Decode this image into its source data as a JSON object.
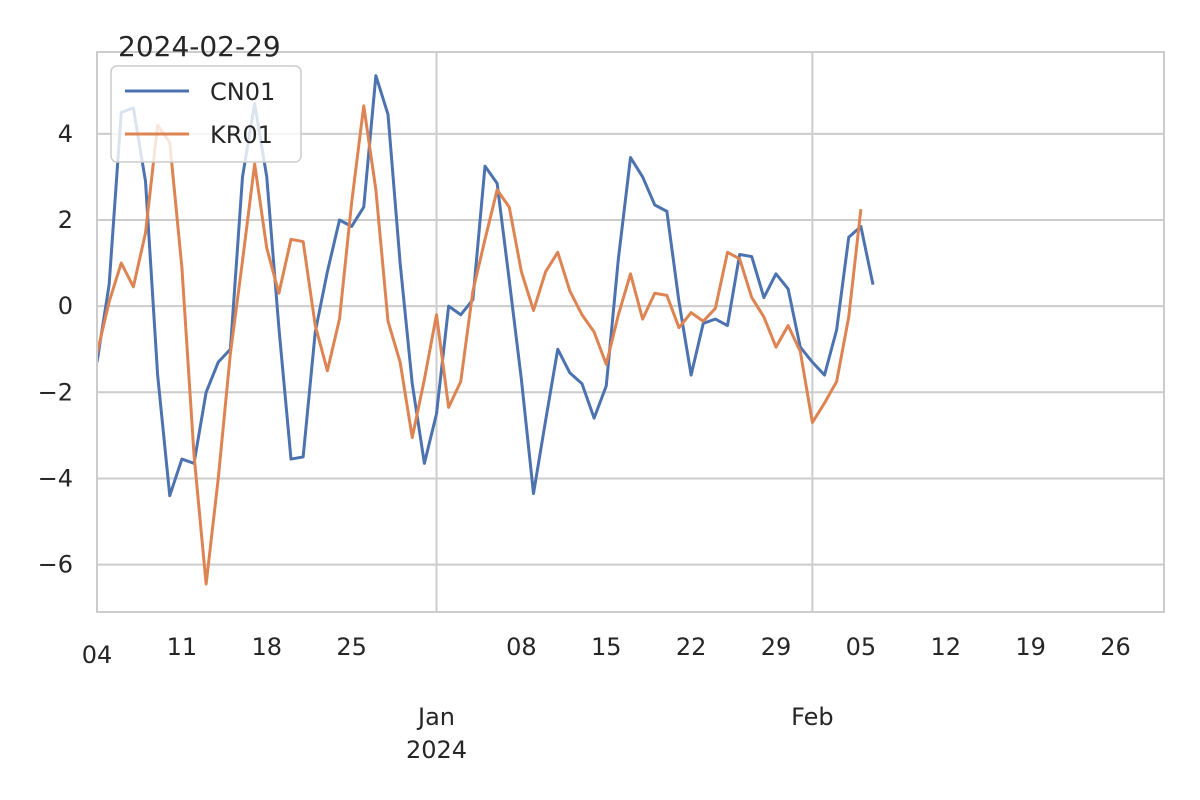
{
  "chart_data": {
    "type": "line",
    "title": "2024-02-29",
    "xlabel": "",
    "ylabel": "",
    "x_start": "2023-12-04",
    "x_end": "2024-03-01",
    "ylim": [
      -7.1,
      5.9
    ],
    "y_ticks": [
      -6,
      -4,
      -2,
      0,
      2,
      4
    ],
    "y_tick_labels": [
      "−6",
      "−4",
      "−2",
      "0",
      "2",
      "4"
    ],
    "x_minor_ticks": [
      {
        "date": "2023-12-04",
        "label": "04"
      },
      {
        "date": "2023-12-11",
        "label": "11"
      },
      {
        "date": "2023-12-18",
        "label": "18"
      },
      {
        "date": "2023-12-25",
        "label": "25"
      },
      {
        "date": "2024-01-08",
        "label": "08"
      },
      {
        "date": "2024-01-15",
        "label": "15"
      },
      {
        "date": "2024-01-22",
        "label": "22"
      },
      {
        "date": "2024-01-29",
        "label": "29"
      },
      {
        "date": "2024-02-05",
        "label": "05"
      },
      {
        "date": "2024-02-12",
        "label": "12"
      },
      {
        "date": "2024-02-19",
        "label": "19"
      },
      {
        "date": "2024-02-26",
        "label": "26"
      }
    ],
    "x_major_ticks": [
      {
        "date": "2024-01-01",
        "label": [
          "Jan",
          "2024"
        ]
      },
      {
        "date": "2024-02-01",
        "label": [
          "Feb"
        ]
      }
    ],
    "grid": true,
    "legend_position": "top-left",
    "series": [
      {
        "name": "CN01",
        "color": "#4c72b0",
        "points": [
          [
            "2023-12-04",
            -1.3
          ],
          [
            "2023-12-05",
            0.5
          ],
          [
            "2023-12-06",
            4.5
          ],
          [
            "2023-12-07",
            4.6
          ],
          [
            "2023-12-08",
            2.9
          ],
          [
            "2023-12-09",
            -1.6
          ],
          [
            "2023-12-10",
            -4.4
          ],
          [
            "2023-12-11",
            -3.55
          ],
          [
            "2023-12-12",
            -3.65
          ],
          [
            "2023-12-13",
            -2.0
          ],
          [
            "2023-12-14",
            -1.3
          ],
          [
            "2023-12-15",
            -1.0
          ],
          [
            "2023-12-16",
            3.0
          ],
          [
            "2023-12-17",
            4.7
          ],
          [
            "2023-12-18",
            3.0
          ],
          [
            "2023-12-19",
            -0.5
          ],
          [
            "2023-12-20",
            -3.55
          ],
          [
            "2023-12-21",
            -3.5
          ],
          [
            "2023-12-22",
            -0.6
          ],
          [
            "2023-12-23",
            0.8
          ],
          [
            "2023-12-24",
            2.0
          ],
          [
            "2023-12-25",
            1.85
          ],
          [
            "2023-12-26",
            2.3
          ],
          [
            "2023-12-27",
            5.35
          ],
          [
            "2023-12-28",
            4.45
          ],
          [
            "2023-12-29",
            1.0
          ],
          [
            "2023-12-30",
            -1.8
          ],
          [
            "2023-12-31",
            -3.65
          ],
          [
            "2024-01-01",
            -2.5
          ],
          [
            "2024-01-02",
            0.0
          ],
          [
            "2024-01-03",
            -0.2
          ],
          [
            "2024-01-04",
            0.15
          ],
          [
            "2024-01-05",
            3.25
          ],
          [
            "2024-01-06",
            2.85
          ],
          [
            "2024-01-07",
            0.6
          ],
          [
            "2024-01-08",
            -1.7
          ],
          [
            "2024-01-09",
            -4.35
          ],
          [
            "2024-01-10",
            -2.65
          ],
          [
            "2024-01-11",
            -1.0
          ],
          [
            "2024-01-12",
            -1.55
          ],
          [
            "2024-01-13",
            -1.8
          ],
          [
            "2024-01-14",
            -2.6
          ],
          [
            "2024-01-15",
            -1.85
          ],
          [
            "2024-01-16",
            1.1
          ],
          [
            "2024-01-17",
            3.45
          ],
          [
            "2024-01-18",
            3.0
          ],
          [
            "2024-01-19",
            2.35
          ],
          [
            "2024-01-20",
            2.2
          ],
          [
            "2024-01-21",
            0.1
          ],
          [
            "2024-01-22",
            -1.6
          ],
          [
            "2024-01-23",
            -0.4
          ],
          [
            "2024-01-24",
            -0.3
          ],
          [
            "2024-01-25",
            -0.45
          ],
          [
            "2024-01-26",
            1.2
          ],
          [
            "2024-01-27",
            1.15
          ],
          [
            "2024-01-28",
            0.2
          ],
          [
            "2024-01-29",
            0.75
          ],
          [
            "2024-01-30",
            0.4
          ],
          [
            "2024-01-31",
            -0.95
          ],
          [
            "2024-02-01",
            -1.3
          ],
          [
            "2024-02-02",
            -1.6
          ],
          [
            "2024-02-03",
            -0.55
          ],
          [
            "2024-02-04",
            1.6
          ],
          [
            "2024-02-05",
            1.85
          ],
          [
            "2024-02-06",
            0.5
          ]
        ]
      },
      {
        "name": "KR01",
        "color": "#dd8452",
        "points": [
          [
            "2023-12-04",
            -1.1
          ],
          [
            "2023-12-05",
            0.1
          ],
          [
            "2023-12-06",
            1.0
          ],
          [
            "2023-12-07",
            0.45
          ],
          [
            "2023-12-08",
            1.7
          ],
          [
            "2023-12-09",
            4.2
          ],
          [
            "2023-12-10",
            3.8
          ],
          [
            "2023-12-11",
            0.9
          ],
          [
            "2023-12-12",
            -3.45
          ],
          [
            "2023-12-13",
            -6.45
          ],
          [
            "2023-12-14",
            -4.0
          ],
          [
            "2023-12-15",
            -1.1
          ],
          [
            "2023-12-16",
            1.05
          ],
          [
            "2023-12-17",
            3.3
          ],
          [
            "2023-12-18",
            1.35
          ],
          [
            "2023-12-19",
            0.3
          ],
          [
            "2023-12-20",
            1.55
          ],
          [
            "2023-12-21",
            1.5
          ],
          [
            "2023-12-22",
            -0.45
          ],
          [
            "2023-12-23",
            -1.5
          ],
          [
            "2023-12-24",
            -0.3
          ],
          [
            "2023-12-25",
            2.4
          ],
          [
            "2023-12-26",
            4.65
          ],
          [
            "2023-12-27",
            2.7
          ],
          [
            "2023-12-28",
            -0.35
          ],
          [
            "2023-12-29",
            -1.3
          ],
          [
            "2023-12-30",
            -3.05
          ],
          [
            "2023-12-31",
            -1.7
          ],
          [
            "2024-01-01",
            -0.2
          ],
          [
            "2024-01-02",
            -2.35
          ],
          [
            "2024-01-03",
            -1.75
          ],
          [
            "2024-01-04",
            0.35
          ],
          [
            "2024-01-05",
            1.55
          ],
          [
            "2024-01-06",
            2.7
          ],
          [
            "2024-01-07",
            2.3
          ],
          [
            "2024-01-08",
            0.8
          ],
          [
            "2024-01-09",
            -0.1
          ],
          [
            "2024-01-10",
            0.8
          ],
          [
            "2024-01-11",
            1.25
          ],
          [
            "2024-01-12",
            0.35
          ],
          [
            "2024-01-13",
            -0.2
          ],
          [
            "2024-01-14",
            -0.6
          ],
          [
            "2024-01-15",
            -1.35
          ],
          [
            "2024-01-16",
            -0.2
          ],
          [
            "2024-01-17",
            0.75
          ],
          [
            "2024-01-18",
            -0.3
          ],
          [
            "2024-01-19",
            0.3
          ],
          [
            "2024-01-20",
            0.25
          ],
          [
            "2024-01-21",
            -0.5
          ],
          [
            "2024-01-22",
            -0.15
          ],
          [
            "2024-01-23",
            -0.35
          ],
          [
            "2024-01-24",
            -0.05
          ],
          [
            "2024-01-25",
            1.25
          ],
          [
            "2024-01-26",
            1.1
          ],
          [
            "2024-01-27",
            0.2
          ],
          [
            "2024-01-28",
            -0.25
          ],
          [
            "2024-01-29",
            -0.95
          ],
          [
            "2024-01-30",
            -0.45
          ],
          [
            "2024-01-31",
            -1.05
          ],
          [
            "2024-02-01",
            -2.7
          ],
          [
            "2024-02-02",
            -2.25
          ],
          [
            "2024-02-03",
            -1.75
          ],
          [
            "2024-02-04",
            -0.25
          ],
          [
            "2024-02-05",
            2.25
          ]
        ]
      }
    ]
  }
}
